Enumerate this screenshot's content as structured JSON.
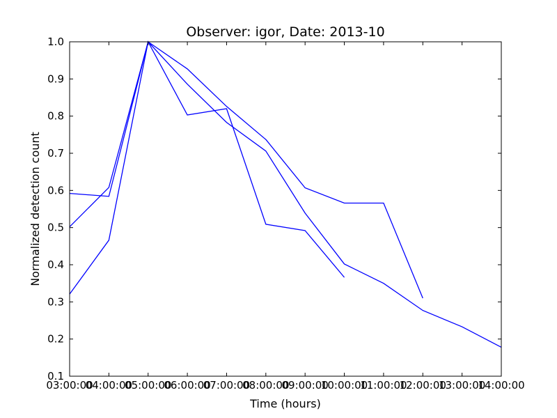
{
  "chart_data": {
    "type": "line",
    "title": "Observer: igor, Date: 2013-10",
    "xlabel": "Time (hours)",
    "ylabel": "Normalized detection count",
    "xlim": [
      3,
      14
    ],
    "ylim": [
      0.1,
      1.0
    ],
    "xtick_values": [
      3,
      4,
      5,
      6,
      7,
      8,
      9,
      10,
      11,
      12,
      13,
      14
    ],
    "xtick_labels": [
      "03:00:00",
      "04:00:00",
      "05:00:00",
      "06:00:00",
      "07:00:00",
      "08:00:00",
      "09:00:00",
      "10:00:00",
      "11:00:00",
      "12:00:00",
      "13:00:00",
      "14:00:00"
    ],
    "ytick_values": [
      0.1,
      0.2,
      0.3,
      0.4,
      0.5,
      0.6,
      0.7,
      0.8,
      0.9,
      1.0
    ],
    "ytick_labels": [
      "0.1",
      "0.2",
      "0.3",
      "0.4",
      "0.5",
      "0.6",
      "0.7",
      "0.8",
      "0.9",
      "1.0"
    ],
    "grid": false,
    "line_color": "#0000ff",
    "series": [
      {
        "x": [
          3,
          4,
          5,
          6,
          7,
          8,
          9,
          10,
          11,
          12
        ],
        "y": [
          0.502,
          0.608,
          1.0,
          0.927,
          0.826,
          0.737,
          0.607,
          0.566,
          0.566,
          0.31
        ]
      },
      {
        "x": [
          3,
          4,
          5,
          6,
          7,
          8,
          9,
          10
        ],
        "y": [
          0.592,
          0.584,
          1.0,
          0.803,
          0.82,
          0.509,
          0.492,
          0.366
        ]
      },
      {
        "x": [
          3,
          4,
          5,
          6,
          7,
          8,
          9,
          10,
          11,
          12,
          13,
          14
        ],
        "y": [
          0.321,
          0.466,
          1.0,
          0.886,
          0.783,
          0.706,
          0.539,
          0.402,
          0.35,
          0.277,
          0.233,
          0.178
        ]
      }
    ]
  }
}
